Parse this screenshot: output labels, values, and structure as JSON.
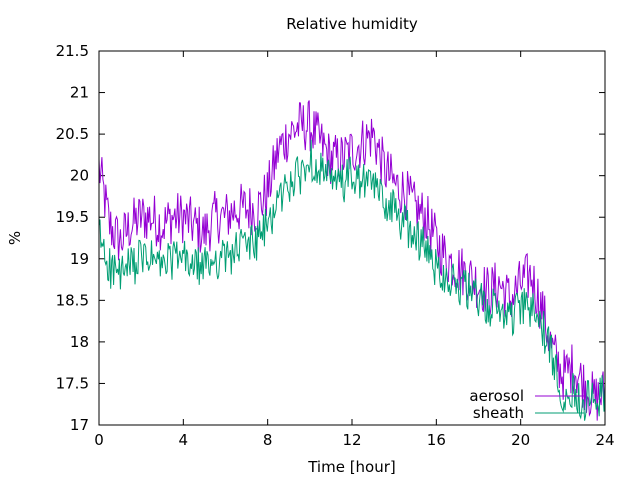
{
  "chart_data": {
    "type": "line",
    "title": "Relative humidity",
    "xlabel": "Time [hour]",
    "ylabel": "%",
    "xlim": [
      0,
      24
    ],
    "ylim": [
      17,
      21.5
    ],
    "xticks": [
      0,
      4,
      8,
      12,
      16,
      20,
      24
    ],
    "xtick_labels": [
      "0",
      "4",
      "8",
      "12",
      "16",
      "20",
      "24"
    ],
    "yticks": [
      17,
      17.5,
      18,
      18.5,
      19,
      19.5,
      20,
      20.5,
      21,
      21.5
    ],
    "ytick_labels": [
      "17",
      "17.5",
      "18",
      "18.5",
      "19",
      "19.5",
      "20",
      "20.5",
      "21",
      "21.5"
    ],
    "grid": false,
    "legend_position": "bottom-right",
    "series": [
      {
        "name": "aerosol",
        "color": "#9400d3",
        "x": [
          0,
          0.5,
          1,
          1.5,
          2,
          2.5,
          3,
          3.5,
          4,
          4.5,
          5,
          5.5,
          6,
          6.5,
          7,
          7.5,
          8,
          8.5,
          9,
          9.5,
          10,
          10.5,
          11,
          11.5,
          12,
          12.5,
          13,
          13.5,
          14,
          14.5,
          15,
          15.5,
          16,
          16.5,
          17,
          17.5,
          18,
          18.5,
          19,
          19.5,
          20,
          20.5,
          21,
          21.5,
          22,
          22.5,
          23,
          23.5,
          24
        ],
        "y": [
          20.1,
          19.4,
          19.2,
          19.4,
          19.5,
          19.5,
          19.4,
          19.5,
          19.5,
          19.4,
          19.3,
          19.5,
          19.5,
          19.6,
          19.6,
          19.6,
          19.8,
          20.3,
          20.5,
          20.6,
          20.6,
          20.4,
          20.2,
          20.2,
          20.3,
          20.4,
          20.5,
          20.1,
          19.9,
          19.8,
          19.6,
          19.5,
          19.2,
          19.0,
          18.9,
          18.8,
          18.7,
          18.6,
          18.7,
          18.5,
          18.7,
          18.8,
          18.4,
          17.9,
          17.6,
          17.7,
          17.5,
          17.3,
          17.4
        ]
      },
      {
        "name": "sheath",
        "color": "#009e73",
        "x": [
          0,
          0.5,
          1,
          1.5,
          2,
          2.5,
          3,
          3.5,
          4,
          4.5,
          5,
          5.5,
          6,
          6.5,
          7,
          7.5,
          8,
          8.5,
          9,
          9.5,
          10,
          10.5,
          11,
          11.5,
          12,
          12.5,
          13,
          13.5,
          14,
          14.5,
          15,
          15.5,
          16,
          16.5,
          17,
          17.5,
          18,
          18.5,
          19,
          19.5,
          20,
          20.5,
          21,
          21.5,
          22,
          22.5,
          23,
          23.5,
          24
        ],
        "y": [
          19.3,
          18.9,
          18.8,
          18.9,
          19.0,
          19.0,
          18.9,
          19.0,
          19.0,
          18.9,
          18.9,
          19.0,
          19.0,
          19.1,
          19.2,
          19.2,
          19.4,
          19.7,
          19.9,
          20.0,
          20.2,
          20.1,
          19.9,
          19.9,
          20.0,
          19.9,
          19.9,
          19.7,
          19.6,
          19.4,
          19.3,
          19.1,
          18.9,
          18.8,
          18.7,
          18.6,
          18.5,
          18.4,
          18.4,
          18.3,
          18.4,
          18.4,
          18.2,
          17.8,
          17.4,
          17.4,
          17.3,
          17.3,
          17.4
        ]
      }
    ]
  }
}
